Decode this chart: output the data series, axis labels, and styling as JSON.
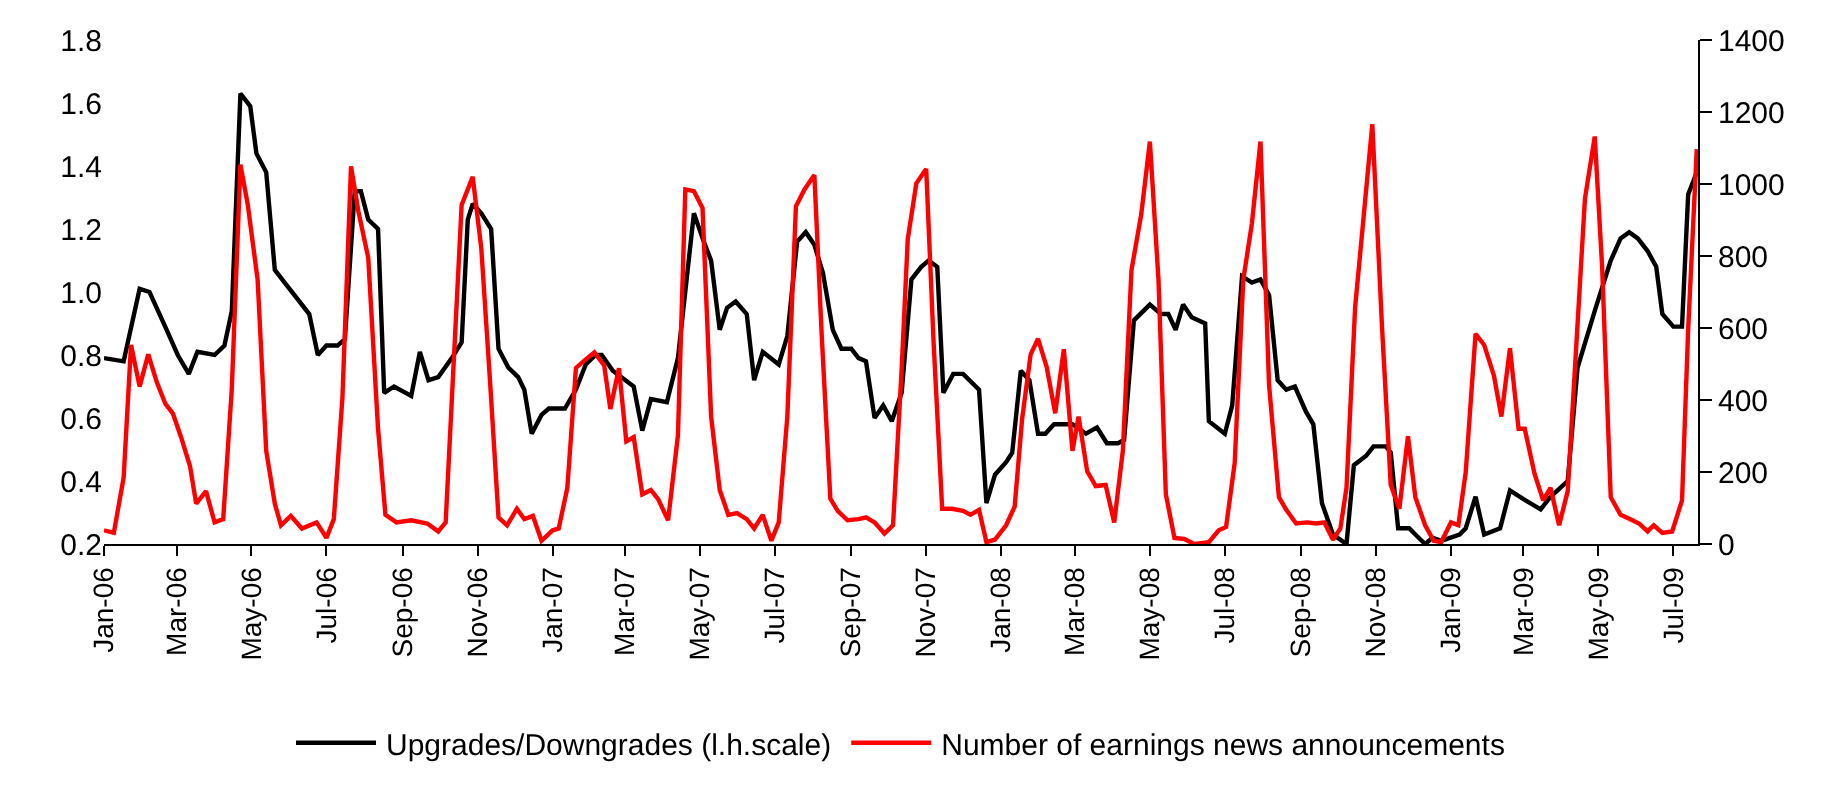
{
  "chart_data": {
    "type": "line",
    "series": [
      {
        "name": "Upgrades/Downgrades (l.h.scale)",
        "color": "#000000",
        "axis": "y",
        "x": [
          "2006-01-01",
          "2006-01-17",
          "2006-01-30",
          "2006-02-07",
          "2006-02-21",
          "2006-03-02",
          "2006-03-11",
          "2006-03-18",
          "2006-04-01",
          "2006-04-09",
          "2006-04-15",
          "2006-04-22",
          "2006-04-30",
          "2006-05-05",
          "2006-05-13",
          "2006-05-20",
          "2006-05-28",
          "2006-06-17",
          "2006-06-24",
          "2006-07-01",
          "2006-07-10",
          "2006-07-16",
          "2006-07-24",
          "2006-07-29",
          "2006-08-04",
          "2006-08-12",
          "2006-08-17",
          "2006-08-25",
          "2006-09-08",
          "2006-09-15",
          "2006-09-22",
          "2006-09-30",
          "2006-10-11",
          "2006-10-19",
          "2006-10-24",
          "2006-10-28",
          "2006-11-04",
          "2006-11-12",
          "2006-11-18",
          "2006-11-26",
          "2006-12-04",
          "2006-12-09",
          "2006-12-15",
          "2006-12-23",
          "2006-12-29",
          "2007-01-11",
          "2007-01-20",
          "2007-01-28",
          "2007-02-05",
          "2007-02-10",
          "2007-02-19",
          "2007-03-08",
          "2007-03-15",
          "2007-03-22",
          "2007-04-04",
          "2007-04-13",
          "2007-04-26",
          "2007-05-04",
          "2007-05-10",
          "2007-05-17",
          "2007-05-23",
          "2007-05-30",
          "2007-06-08",
          "2007-06-14",
          "2007-06-21",
          "2007-07-04",
          "2007-07-11",
          "2007-07-19",
          "2007-07-26",
          "2007-08-02",
          "2007-08-09",
          "2007-08-17",
          "2007-08-24",
          "2007-09-01",
          "2007-09-07",
          "2007-09-13",
          "2007-09-20",
          "2007-09-27",
          "2007-10-04",
          "2007-10-12",
          "2007-10-20",
          "2007-10-28",
          "2007-11-03",
          "2007-11-10",
          "2007-11-15",
          "2007-11-23",
          "2007-12-01",
          "2007-12-14",
          "2007-12-20",
          "2007-12-27",
          "2008-01-05",
          "2008-01-10",
          "2008-01-17",
          "2008-01-24",
          "2008-01-31",
          "2008-02-06",
          "2008-02-13",
          "2008-02-28",
          "2008-03-10",
          "2008-03-19",
          "2008-03-27",
          "2008-04-05",
          "2008-04-10",
          "2008-04-18",
          "2008-05-01",
          "2008-05-10",
          "2008-05-16",
          "2008-05-22",
          "2008-05-28",
          "2008-06-04",
          "2008-06-15",
          "2008-06-18",
          "2008-07-01",
          "2008-07-07",
          "2008-07-15",
          "2008-07-23",
          "2008-07-30",
          "2008-08-06",
          "2008-08-13",
          "2008-08-20",
          "2008-08-27",
          "2008-09-05",
          "2008-09-11",
          "2008-09-18",
          "2008-09-27",
          "2008-10-08",
          "2008-10-14",
          "2008-10-24",
          "2008-10-30",
          "2008-11-09",
          "2008-11-13",
          "2008-11-19",
          "2008-11-28",
          "2008-12-03",
          "2008-12-11",
          "2008-12-17",
          "2008-12-24",
          "2009-01-08",
          "2009-01-13",
          "2009-01-21",
          "2009-01-28",
          "2009-02-10",
          "2009-02-18",
          "2009-03-02",
          "2009-03-15",
          "2009-03-23",
          "2009-04-06",
          "2009-04-14",
          "2009-04-28",
          "2009-05-11",
          "2009-05-19",
          "2009-05-26",
          "2009-06-02",
          "2009-06-10",
          "2009-06-17",
          "2009-06-22",
          "2009-07-01",
          "2009-07-08",
          "2009-07-13",
          "2009-07-20"
        ],
        "values": [
          0.79,
          0.78,
          1.01,
          1.0,
          0.88,
          0.8,
          0.74,
          0.81,
          0.8,
          0.83,
          0.94,
          1.63,
          1.59,
          1.44,
          1.38,
          1.07,
          1.03,
          0.93,
          0.8,
          0.83,
          0.83,
          0.85,
          1.32,
          1.32,
          1.23,
          1.2,
          0.68,
          0.7,
          0.67,
          0.81,
          0.72,
          0.73,
          0.79,
          0.84,
          1.23,
          1.28,
          1.25,
          1.2,
          0.82,
          0.76,
          0.73,
          0.69,
          0.55,
          0.61,
          0.63,
          0.63,
          0.69,
          0.77,
          0.8,
          0.8,
          0.75,
          0.7,
          0.56,
          0.66,
          0.65,
          0.79,
          1.25,
          1.16,
          1.1,
          0.88,
          0.95,
          0.97,
          0.93,
          0.72,
          0.81,
          0.77,
          0.86,
          1.16,
          1.19,
          1.15,
          1.06,
          0.88,
          0.82,
          0.82,
          0.79,
          0.78,
          0.6,
          0.64,
          0.59,
          0.68,
          1.04,
          1.08,
          1.1,
          1.08,
          0.68,
          0.74,
          0.74,
          0.69,
          0.33,
          0.42,
          0.46,
          0.49,
          0.75,
          0.72,
          0.55,
          0.55,
          0.58,
          0.58,
          0.55,
          0.57,
          0.52,
          0.52,
          0.53,
          0.91,
          0.96,
          0.93,
          0.93,
          0.88,
          0.96,
          0.92,
          0.9,
          0.59,
          0.55,
          0.64,
          1.05,
          1.03,
          1.04,
          0.99,
          0.72,
          0.69,
          0.7,
          0.62,
          0.58,
          0.33,
          0.23,
          0.2,
          0.45,
          0.48,
          0.51,
          0.51,
          0.49,
          0.25,
          0.25,
          0.23,
          0.2,
          0.22,
          0.21,
          0.23,
          0.25,
          0.35,
          0.23,
          0.25,
          0.37,
          0.34,
          0.31,
          0.35,
          0.4,
          0.76,
          0.94,
          1.1,
          1.17,
          1.19,
          1.17,
          1.13,
          1.08,
          0.93,
          0.89,
          0.89,
          1.31,
          1.38
        ]
      },
      {
        "name": "Number of earnings news announcements",
        "color": "#ff0000",
        "axis": "y2",
        "x": [
          "2006-01-01",
          "2006-01-09",
          "2006-01-17",
          "2006-01-23",
          "2006-01-30",
          "2006-02-06",
          "2006-02-13",
          "2006-02-20",
          "2006-02-26",
          "2006-03-05",
          "2006-03-12",
          "2006-03-17",
          "2006-03-25",
          "2006-04-01",
          "2006-04-08",
          "2006-04-15",
          "2006-04-22",
          "2006-04-28",
          "2006-05-06",
          "2006-05-13",
          "2006-05-20",
          "2006-05-25",
          "2006-06-02",
          "2006-06-11",
          "2006-06-23",
          "2006-07-01",
          "2006-07-07",
          "2006-07-14",
          "2006-07-21",
          "2006-07-27",
          "2006-08-04",
          "2006-08-12",
          "2006-08-18",
          "2006-08-27",
          "2006-09-08",
          "2006-09-21",
          "2006-09-30",
          "2006-10-06",
          "2006-10-19",
          "2006-10-28",
          "2006-11-04",
          "2006-11-11",
          "2006-11-18",
          "2006-11-25",
          "2006-12-03",
          "2006-12-09",
          "2006-12-16",
          "2006-12-23",
          "2007-01-01",
          "2007-01-06",
          "2007-01-13",
          "2007-01-20",
          "2007-01-28",
          "2007-02-04",
          "2007-02-12",
          "2007-02-17",
          "2007-02-24",
          "2007-03-02",
          "2007-03-08",
          "2007-03-15",
          "2007-03-22",
          "2007-03-28",
          "2007-04-05",
          "2007-04-13",
          "2007-04-19",
          "2007-04-26",
          "2007-05-03",
          "2007-05-10",
          "2007-05-17",
          "2007-05-24",
          "2007-05-31",
          "2007-06-08",
          "2007-06-14",
          "2007-06-21",
          "2007-06-28",
          "2007-07-04",
          "2007-07-11",
          "2007-07-18",
          "2007-07-25",
          "2007-08-02",
          "2007-08-08",
          "2007-08-15",
          "2007-08-21",
          "2007-08-29",
          "2007-09-07",
          "2007-09-13",
          "2007-09-20",
          "2007-09-28",
          "2007-10-05",
          "2007-10-12",
          "2007-10-17",
          "2007-10-24",
          "2007-11-01",
          "2007-11-07",
          "2007-11-14",
          "2007-11-22",
          "2007-12-01",
          "2007-12-07",
          "2007-12-14",
          "2007-12-20",
          "2007-12-27",
          "2008-01-05",
          "2008-01-12",
          "2008-01-18",
          "2008-01-25",
          "2008-01-31",
          "2008-02-07",
          "2008-02-14",
          "2008-02-21",
          "2008-02-28",
          "2008-03-04",
          "2008-03-11",
          "2008-03-18",
          "2008-03-26",
          "2008-04-02",
          "2008-04-09",
          "2008-04-16",
          "2008-04-24",
          "2008-05-01",
          "2008-05-08",
          "2008-05-14",
          "2008-05-21",
          "2008-05-29",
          "2008-06-06",
          "2008-06-18",
          "2008-06-26",
          "2008-07-02",
          "2008-07-09",
          "2008-07-16",
          "2008-07-23",
          "2008-07-30",
          "2008-08-06",
          "2008-08-14",
          "2008-08-20",
          "2008-08-28",
          "2008-09-06",
          "2008-09-13",
          "2008-09-20",
          "2008-09-27",
          "2008-10-03",
          "2008-10-08",
          "2008-10-15",
          "2008-10-29",
          "2008-11-06",
          "2008-11-13",
          "2008-11-20",
          "2008-11-27",
          "2008-12-03",
          "2008-12-11",
          "2008-12-18",
          "2008-12-24",
          "2009-01-01",
          "2009-01-07",
          "2009-01-13",
          "2009-01-21",
          "2009-01-28",
          "2009-02-05",
          "2009-02-11",
          "2009-02-18",
          "2009-02-25",
          "2009-03-02",
          "2009-03-10",
          "2009-03-17",
          "2009-03-23",
          "2009-03-30",
          "2009-04-06",
          "2009-04-20",
          "2009-04-28",
          "2009-05-04",
          "2009-05-11",
          "2009-05-19",
          "2009-05-27",
          "2009-06-03",
          "2009-06-10",
          "2009-06-15",
          "2009-06-22",
          "2009-06-30",
          "2009-07-08",
          "2009-07-13",
          "2009-07-20"
        ],
        "values": [
          38,
          31,
          185,
          553,
          437,
          527,
          449,
          389,
          363,
          294,
          216,
          112,
          147,
          60,
          69,
          432,
          1054,
          942,
          734,
          259,
          112,
          52,
          78,
          43,
          60,
          17,
          69,
          406,
          1049,
          924,
          795,
          320,
          81,
          60,
          66,
          57,
          35,
          60,
          942,
          1020,
          821,
          458,
          74,
          52,
          98,
          69,
          78,
          9,
          38,
          43,
          156,
          489,
          513,
          532,
          496,
          375,
          488,
          285,
          297,
          138,
          150,
          124,
          66,
          302,
          985,
          980,
          933,
          354,
          150,
          81,
          86,
          69,
          43,
          81,
          9,
          60,
          354,
          938,
          985,
          1025,
          579,
          126,
          92,
          66,
          69,
          74,
          60,
          29,
          52,
          484,
          847,
          1002,
          1042,
          562,
          98,
          98,
          92,
          81,
          95,
          5,
          12,
          52,
          104,
          346,
          527,
          570,
          492,
          363,
          541,
          259,
          354,
          202,
          161,
          164,
          60,
          259,
          760,
          916,
          1118,
          734,
          138,
          17,
          14,
          0,
          5,
          38,
          47,
          225,
          734,
          890,
          1118,
          441,
          130,
          95,
          57,
          60,
          57,
          60,
          12,
          43,
          156,
          657,
          1166,
          596,
          164,
          98,
          299,
          130,
          52,
          9,
          5,
          60,
          52,
          199,
          584,
          553,
          467,
          354,
          544,
          320,
          320,
          195,
          121,
          156,
          52,
          147,
          959,
          1132,
          769,
          130,
          81,
          69,
          57,
          35,
          52,
          31,
          35,
          121,
          596,
          1097
        ]
      }
    ],
    "xlim": [
      "2006-01-01",
      "2009-07-21"
    ],
    "xticks": [
      {
        "value": "2006-01-01",
        "label": "Jan-06"
      },
      {
        "value": "2006-03-01",
        "label": "Mar-06"
      },
      {
        "value": "2006-05-01",
        "label": "May-06"
      },
      {
        "value": "2006-07-01",
        "label": "Jul-06"
      },
      {
        "value": "2006-09-01",
        "label": "Sep-06"
      },
      {
        "value": "2006-11-01",
        "label": "Nov-06"
      },
      {
        "value": "2007-01-01",
        "label": "Jan-07"
      },
      {
        "value": "2007-03-01",
        "label": "Mar-07"
      },
      {
        "value": "2007-05-01",
        "label": "May-07"
      },
      {
        "value": "2007-07-01",
        "label": "Jul-07"
      },
      {
        "value": "2007-09-01",
        "label": "Sep-07"
      },
      {
        "value": "2007-11-01",
        "label": "Nov-07"
      },
      {
        "value": "2008-01-01",
        "label": "Jan-08"
      },
      {
        "value": "2008-03-01",
        "label": "Mar-08"
      },
      {
        "value": "2008-05-01",
        "label": "May-08"
      },
      {
        "value": "2008-07-01",
        "label": "Jul-08"
      },
      {
        "value": "2008-09-01",
        "label": "Sep-08"
      },
      {
        "value": "2008-11-01",
        "label": "Nov-08"
      },
      {
        "value": "2009-01-01",
        "label": "Jan-09"
      },
      {
        "value": "2009-03-01",
        "label": "Mar-09"
      },
      {
        "value": "2009-05-01",
        "label": "May-09"
      },
      {
        "value": "2009-07-01",
        "label": "Jul-09"
      }
    ],
    "ylim": [
      0.2,
      1.8
    ],
    "yticks": [
      {
        "value": 0.2,
        "label": "0.2"
      },
      {
        "value": 0.4,
        "label": "0.4"
      },
      {
        "value": 0.6,
        "label": "0.6"
      },
      {
        "value": 0.8,
        "label": "0.8"
      },
      {
        "value": 1.0,
        "label": "1.0"
      },
      {
        "value": 1.2,
        "label": "1.2"
      },
      {
        "value": 1.4,
        "label": "1.4"
      },
      {
        "value": 1.6,
        "label": "1.6"
      },
      {
        "value": 1.8,
        "label": "1.8"
      }
    ],
    "y2lim": [
      0,
      1400
    ],
    "y2ticks": [
      0,
      200,
      400,
      600,
      800,
      1000,
      1200,
      1400
    ],
    "legend": "bottom",
    "marker": "none",
    "line_style": "solid"
  }
}
